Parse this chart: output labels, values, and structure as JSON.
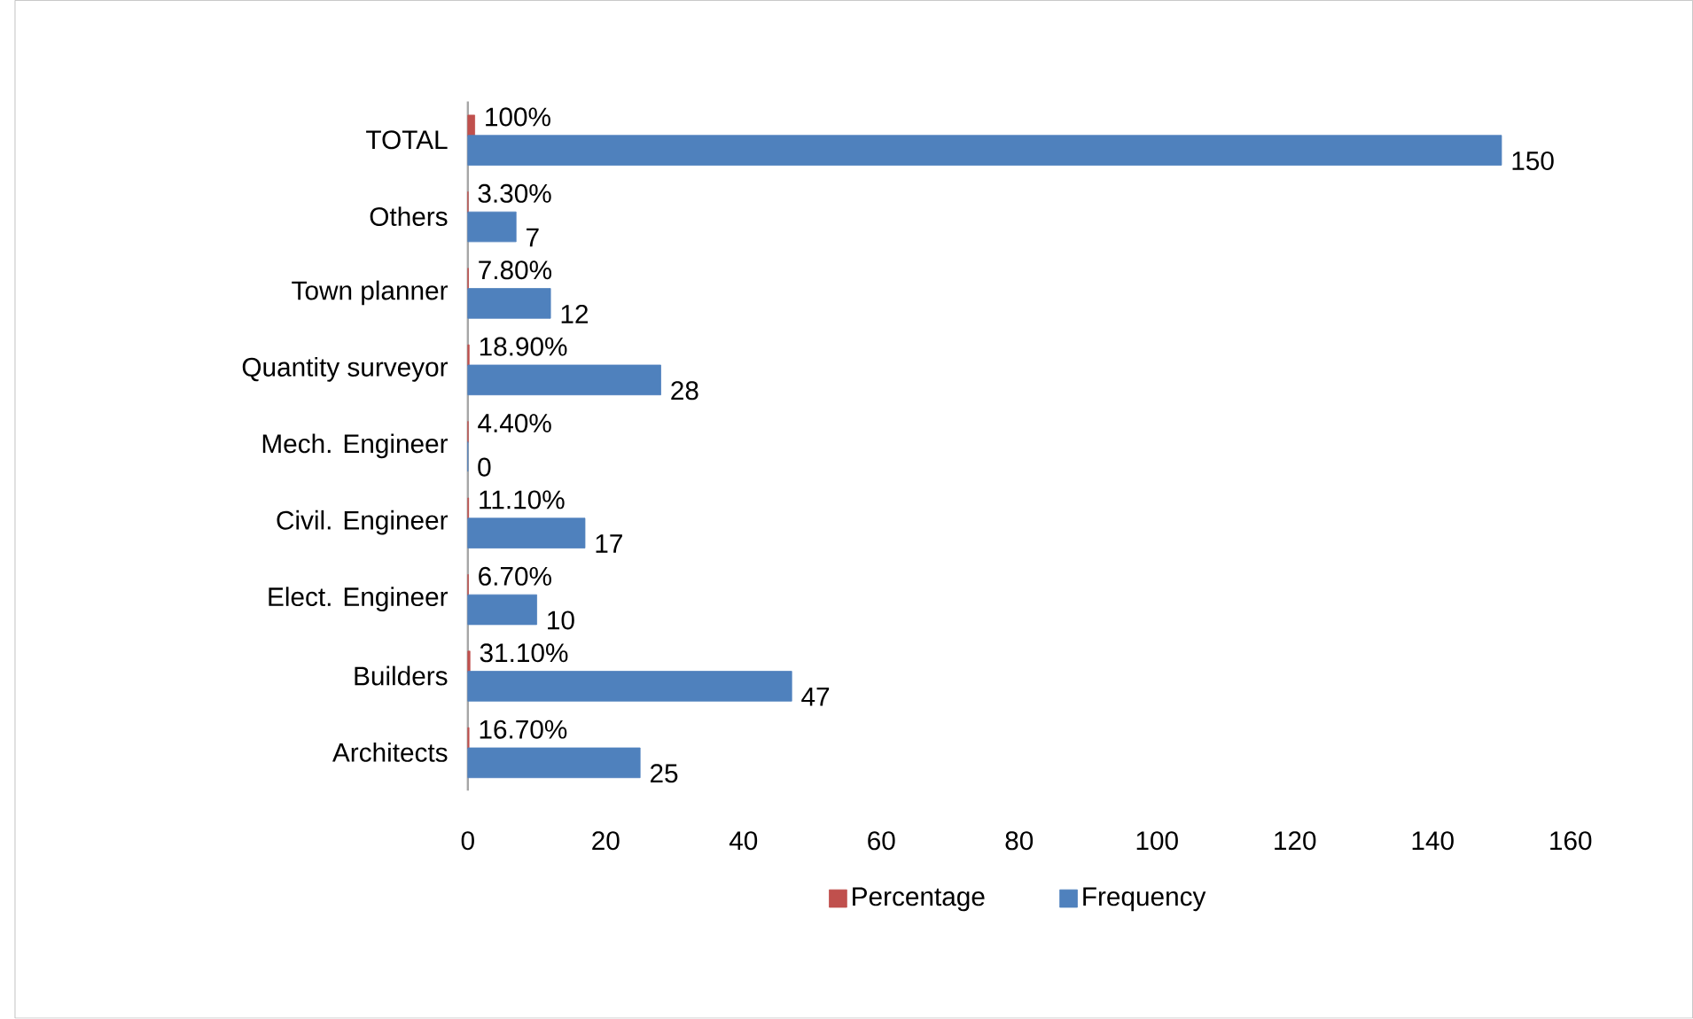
{
  "chart_data": {
    "type": "bar",
    "orientation": "horizontal",
    "categories": [
      "TOTAL",
      "Others",
      "Town planner",
      "Quantity surveyor",
      "Mech. Engineer",
      "Civil. Engineer",
      "Elect. Engineer",
      "Builders",
      "Architects"
    ],
    "series": [
      {
        "name": "Percentage",
        "color": "#c0504d",
        "values": [
          1,
          0.033,
          0.078,
          0.189,
          0.044,
          0.111,
          0.067,
          0.311,
          0.167
        ],
        "value_labels": [
          "100%",
          "3.30%",
          "7.80%",
          "18.90%",
          "4.40%",
          "11.10%",
          "6.70%",
          "31.10%",
          "16.70%"
        ]
      },
      {
        "name": "Frequency",
        "color": "#4f81bd",
        "values": [
          150,
          7,
          12,
          28,
          0,
          17,
          10,
          47,
          25
        ],
        "value_labels": [
          "150",
          "7",
          "12",
          "28",
          "0",
          "17",
          "10",
          "47",
          "25"
        ]
      }
    ],
    "xlim": [
      0,
      160
    ],
    "xticks": [
      0,
      20,
      40,
      60,
      80,
      100,
      120,
      140,
      160
    ],
    "legend": "bottom",
    "grid": false
  }
}
